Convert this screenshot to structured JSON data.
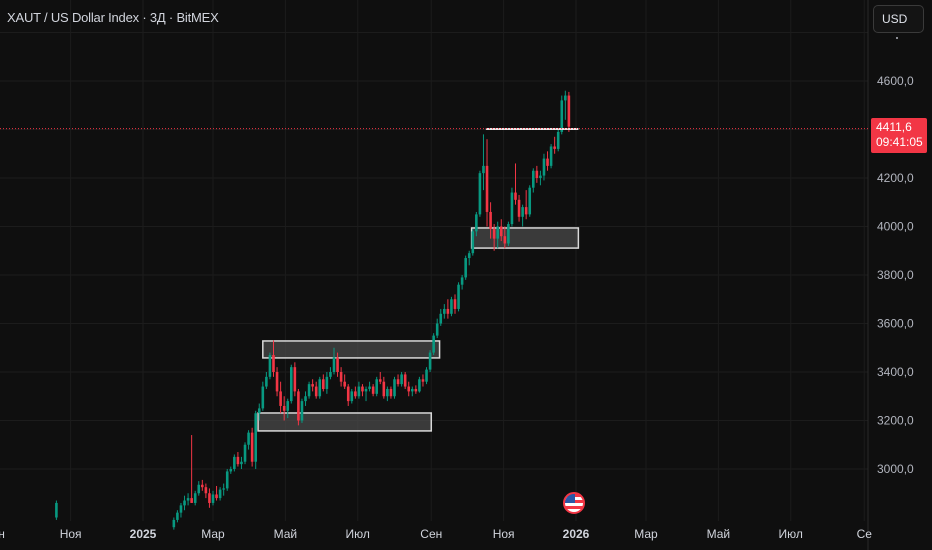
{
  "header": {
    "title": "XAUT / US Dollar Index · 3Д · BitMEX",
    "currency_button": "USD"
  },
  "price_label": {
    "price": "4411,6",
    "countdown": "09:41:05"
  },
  "colors": {
    "background": "#0f0f0f",
    "up": "#089981",
    "down": "#f23645",
    "grid": "#1c1c1c",
    "axis_text": "#b2b5be",
    "zone_fill": "#4a4a4a",
    "zone_border": "#d9d9d9"
  },
  "events": [
    {
      "icon": "us-flag-icon",
      "date": "2026-01-01"
    }
  ],
  "chart_data": {
    "type": "candlestick",
    "title": "XAUT / US Dollar Index · 3Д · BitMEX",
    "interval": "3Д",
    "xlim": [
      "2024-09-28",
      "2026-09-10"
    ],
    "ylim": [
      2780,
      4780
    ],
    "grid": true,
    "y_ticks": [
      "4600,0",
      "4200,0",
      "4000,0",
      "3800,0",
      "3600,0",
      "3400,0",
      "3200,0",
      "3000,0"
    ],
    "y_tick_values": [
      4600,
      4200,
      4000,
      3800,
      3600,
      3400,
      3200,
      3000
    ],
    "x_ticks": [
      {
        "label": "ен",
        "date": "2024-09-01"
      },
      {
        "label": "Ноя",
        "date": "2024-11-01"
      },
      {
        "label": "2025",
        "date": "2025-01-01"
      },
      {
        "label": "Мар",
        "date": "2025-03-01"
      },
      {
        "label": "Май",
        "date": "2025-05-01"
      },
      {
        "label": "Июл",
        "date": "2025-07-01"
      },
      {
        "label": "Сен",
        "date": "2025-09-01"
      },
      {
        "label": "Ноя",
        "date": "2025-11-01"
      },
      {
        "label": "2026",
        "date": "2026-01-01"
      },
      {
        "label": "Мар",
        "date": "2026-03-01"
      },
      {
        "label": "Май",
        "date": "2026-05-01"
      },
      {
        "label": "Июл",
        "date": "2026-07-01"
      },
      {
        "label": "Се",
        "date": "2026-09-01"
      }
    ],
    "last_price": 4411.6,
    "isolated_candle": {
      "date": "2024-10-20",
      "ohlc": [
        2800,
        2870,
        2790,
        2860
      ]
    },
    "candles_start": "2025-01-27",
    "candles_ohlc": [
      [
        2760,
        2800,
        2750,
        2790
      ],
      [
        2790,
        2830,
        2780,
        2820
      ],
      [
        2820,
        2860,
        2800,
        2850
      ],
      [
        2850,
        2890,
        2830,
        2870
      ],
      [
        2870,
        2900,
        2850,
        2880
      ],
      [
        2880,
        3140,
        2860,
        2860
      ],
      [
        2860,
        2910,
        2850,
        2900
      ],
      [
        2900,
        2950,
        2890,
        2935
      ],
      [
        2935,
        2955,
        2910,
        2925
      ],
      [
        2925,
        2940,
        2880,
        2900
      ],
      [
        2900,
        2920,
        2840,
        2860
      ],
      [
        2860,
        2910,
        2850,
        2895
      ],
      [
        2895,
        2930,
        2870,
        2880
      ],
      [
        2880,
        2925,
        2870,
        2915
      ],
      [
        2915,
        2940,
        2890,
        2920
      ],
      [
        2920,
        3000,
        2910,
        2990
      ],
      [
        2990,
        3010,
        2980,
        3000
      ],
      [
        3000,
        3060,
        2990,
        3050
      ],
      [
        3050,
        3070,
        3010,
        3020
      ],
      [
        3020,
        3050,
        3000,
        3030
      ],
      [
        3030,
        3110,
        3020,
        3100
      ],
      [
        3100,
        3160,
        3080,
        3150
      ],
      [
        3150,
        3170,
        3010,
        3030
      ],
      [
        3030,
        3240,
        3000,
        3230
      ],
      [
        3230,
        3270,
        3200,
        3250
      ],
      [
        3250,
        3360,
        3240,
        3340
      ],
      [
        3340,
        3400,
        3330,
        3380
      ],
      [
        3380,
        3480,
        3370,
        3470
      ],
      [
        3470,
        3530,
        3380,
        3400
      ],
      [
        3400,
        3420,
        3300,
        3320
      ],
      [
        3320,
        3360,
        3230,
        3260
      ],
      [
        3260,
        3300,
        3200,
        3240
      ],
      [
        3240,
        3290,
        3210,
        3280
      ],
      [
        3280,
        3430,
        3270,
        3420
      ],
      [
        3420,
        3440,
        3300,
        3320
      ],
      [
        3320,
        3330,
        3180,
        3200
      ],
      [
        3200,
        3290,
        3190,
        3280
      ],
      [
        3280,
        3320,
        3260,
        3300
      ],
      [
        3300,
        3360,
        3290,
        3350
      ],
      [
        3350,
        3370,
        3320,
        3340
      ],
      [
        3340,
        3360,
        3290,
        3300
      ],
      [
        3300,
        3380,
        3290,
        3370
      ],
      [
        3370,
        3390,
        3320,
        3330
      ],
      [
        3330,
        3400,
        3310,
        3380
      ],
      [
        3380,
        3420,
        3370,
        3400
      ],
      [
        3400,
        3500,
        3390,
        3460
      ],
      [
        3460,
        3480,
        3380,
        3400
      ],
      [
        3400,
        3420,
        3340,
        3360
      ],
      [
        3360,
        3390,
        3330,
        3340
      ],
      [
        3340,
        3350,
        3260,
        3280
      ],
      [
        3280,
        3330,
        3270,
        3320
      ],
      [
        3320,
        3340,
        3290,
        3300
      ],
      [
        3300,
        3360,
        3290,
        3340
      ],
      [
        3340,
        3350,
        3300,
        3320
      ],
      [
        3320,
        3340,
        3280,
        3330
      ],
      [
        3330,
        3360,
        3320,
        3340
      ],
      [
        3340,
        3350,
        3300,
        3310
      ],
      [
        3310,
        3380,
        3300,
        3370
      ],
      [
        3370,
        3400,
        3350,
        3360
      ],
      [
        3360,
        3380,
        3290,
        3300
      ],
      [
        3300,
        3340,
        3280,
        3330
      ],
      [
        3330,
        3340,
        3290,
        3300
      ],
      [
        3300,
        3380,
        3290,
        3370
      ],
      [
        3370,
        3390,
        3340,
        3350
      ],
      [
        3350,
        3400,
        3340,
        3390
      ],
      [
        3390,
        3400,
        3330,
        3340
      ],
      [
        3340,
        3360,
        3300,
        3320
      ],
      [
        3320,
        3340,
        3300,
        3330
      ],
      [
        3330,
        3345,
        3310,
        3320
      ],
      [
        3320,
        3380,
        3315,
        3370
      ],
      [
        3370,
        3390,
        3340,
        3360
      ],
      [
        3360,
        3420,
        3350,
        3410
      ],
      [
        3410,
        3490,
        3400,
        3480
      ],
      [
        3480,
        3560,
        3470,
        3550
      ],
      [
        3550,
        3620,
        3540,
        3600
      ],
      [
        3600,
        3660,
        3590,
        3640
      ],
      [
        3640,
        3680,
        3620,
        3660
      ],
      [
        3660,
        3700,
        3620,
        3640
      ],
      [
        3640,
        3710,
        3630,
        3700
      ],
      [
        3700,
        3720,
        3640,
        3660
      ],
      [
        3660,
        3770,
        3650,
        3760
      ],
      [
        3760,
        3800,
        3740,
        3790
      ],
      [
        3790,
        3880,
        3780,
        3870
      ],
      [
        3870,
        3900,
        3840,
        3890
      ],
      [
        3890,
        3990,
        3880,
        3980
      ],
      [
        3980,
        4060,
        3960,
        4050
      ],
      [
        4050,
        4230,
        4040,
        4220
      ],
      [
        4220,
        4380,
        4150,
        4250
      ],
      [
        4250,
        4360,
        4000,
        4060
      ],
      [
        4060,
        4100,
        3950,
        3990
      ],
      [
        3990,
        4010,
        3900,
        3950
      ],
      [
        3950,
        4020,
        3910,
        4000
      ],
      [
        4000,
        4030,
        3940,
        3960
      ],
      [
        3960,
        4000,
        3910,
        3930
      ],
      [
        3930,
        4020,
        3920,
        4010
      ],
      [
        4010,
        4160,
        4000,
        4140
      ],
      [
        4140,
        4260,
        4090,
        4110
      ],
      [
        4110,
        4130,
        4020,
        4040
      ],
      [
        4040,
        4090,
        4000,
        4080
      ],
      [
        4080,
        4150,
        4030,
        4050
      ],
      [
        4050,
        4170,
        4040,
        4160
      ],
      [
        4160,
        4240,
        4140,
        4230
      ],
      [
        4230,
        4250,
        4180,
        4200
      ],
      [
        4200,
        4230,
        4170,
        4210
      ],
      [
        4210,
        4300,
        4190,
        4280
      ],
      [
        4280,
        4310,
        4230,
        4250
      ],
      [
        4250,
        4340,
        4240,
        4330
      ],
      [
        4330,
        4370,
        4300,
        4320
      ],
      [
        4320,
        4400,
        4310,
        4390
      ],
      [
        4390,
        4540,
        4380,
        4520
      ],
      [
        4520,
        4560,
        4440,
        4540
      ],
      [
        4540,
        4555,
        4390,
        4411.6
      ]
    ],
    "zones": [
      {
        "from": "2025-04-12",
        "to": "2025-09-08",
        "top": 3528,
        "bottom": 3458
      },
      {
        "from": "2025-04-08",
        "to": "2025-09-01",
        "top": 3231,
        "bottom": 3157
      },
      {
        "from": "2025-10-05",
        "to": "2026-01-03",
        "top": 3994,
        "bottom": 3911
      }
    ],
    "levels": [
      {
        "from": "2025-10-17",
        "to": "2026-01-03",
        "price": 4402
      }
    ]
  }
}
